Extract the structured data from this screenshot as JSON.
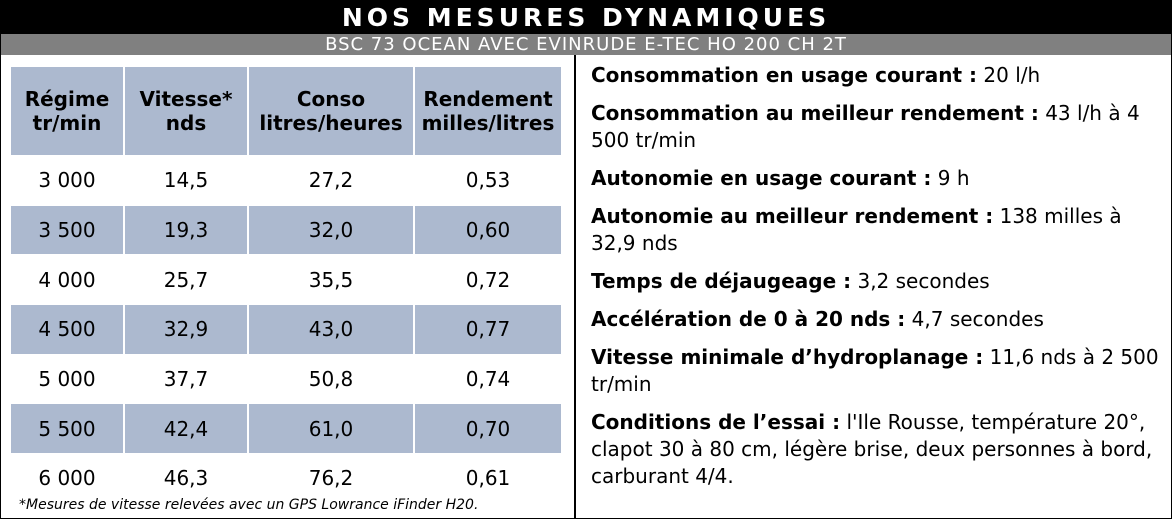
{
  "header": {
    "title": "NOS MESURES DYNAMIQUES",
    "subtitle": "BSC 73 OCEAN AVEC EVINRUDE E-TEC HO 200 CH 2T"
  },
  "table": {
    "headers": [
      [
        "Régime",
        "tr/min"
      ],
      [
        "Vitesse*",
        "nds"
      ],
      [
        "Conso",
        "litres/heures"
      ],
      [
        "Rendement",
        "milles/litres"
      ]
    ],
    "rows": [
      [
        "3 000",
        "14,5",
        "27,2",
        "0,53"
      ],
      [
        "3 500",
        "19,3",
        "32,0",
        "0,60"
      ],
      [
        "4 000",
        "25,7",
        "35,5",
        "0,72"
      ],
      [
        "4 500",
        "32,9",
        "43,0",
        "0,77"
      ],
      [
        "5 000",
        "37,7",
        "50,8",
        "0,74"
      ],
      [
        "5 500",
        "42,4",
        "61,0",
        "0,70"
      ],
      [
        "6 000",
        "46,3",
        "76,2",
        "0,61"
      ]
    ],
    "footnote": "*Mesures de vitesse relevées avec un GPS Lowrance iFinder H20."
  },
  "facts": [
    {
      "label": "Consommation en usage courant :",
      "value": "20 l/h"
    },
    {
      "label": "Consommation au meilleur rendement :",
      "value": "43 l/h à 4 500 tr/min"
    },
    {
      "label": "Autonomie en usage courant :",
      "value": "9 h"
    },
    {
      "label": "Autonomie au meilleur rendement :",
      "value": "138 milles à 32,9 nds"
    },
    {
      "label": "Temps de déjaugeage :",
      "value": "3,2 secondes"
    },
    {
      "label": "Accélération de 0 à 20 nds :",
      "value": "4,7 secondes"
    },
    {
      "label": "Vitesse minimale d’hydroplanage :",
      "value": "11,6 nds à 2 500 tr/min"
    },
    {
      "label": "Conditions de l’essai :",
      "value": "l'Ile Rousse, température 20°, clapot 30 à 80 cm, légère brise, deux personnes à bord, carburant 4/4."
    }
  ]
}
